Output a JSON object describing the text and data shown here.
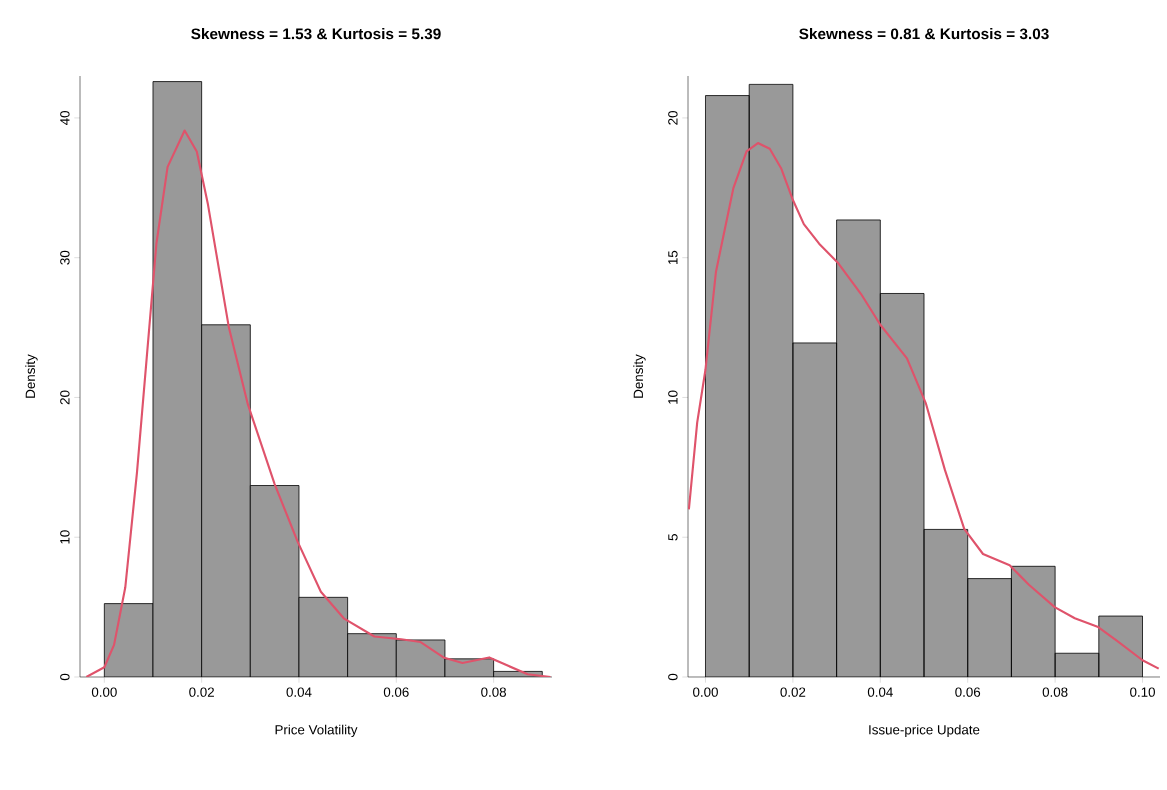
{
  "chart_data": [
    {
      "type": "histogram",
      "title": "Skewness = 1.53 & Kurtosis = 5.39",
      "xlabel": "Price Volatility",
      "ylabel": "Density",
      "bins": [
        0,
        0.01,
        0.02,
        0.03,
        0.04,
        0.05,
        0.06,
        0.07,
        0.08,
        0.09
      ],
      "values": [
        5.25,
        42.6,
        25.2,
        13.7,
        5.7,
        3.1,
        2.65,
        1.3,
        0.4
      ],
      "color": "#999999",
      "series": [
        {
          "type": "line",
          "color": "#df536b",
          "x": [
            -0.0037,
            0.0,
            0.002,
            0.0043,
            0.0067,
            0.0087,
            0.0107,
            0.013,
            0.0165,
            0.019,
            0.0213,
            0.0256,
            0.0295,
            0.035,
            0.0397,
            0.0445,
            0.0492,
            0.0555,
            0.061,
            0.065,
            0.0697,
            0.0736,
            0.0791,
            0.083,
            0.087,
            0.0917
          ],
          "values": [
            0,
            0.7,
            2.3,
            6.4,
            14.6,
            22.8,
            31,
            36.5,
            39.1,
            37.6,
            33.8,
            25,
            19.5,
            13.8,
            9.7,
            6.1,
            4.2,
            2.9,
            2.7,
            2.5,
            1.4,
            1.0,
            1.4,
            0.8,
            0.2,
            0
          ]
        }
      ],
      "xlim": [
        -0.005,
        0.092
      ],
      "ylim": [
        0,
        43
      ],
      "xticks": [
        {
          "value": 0,
          "label": "0.00"
        },
        {
          "value": 0.02,
          "label": "0.02"
        },
        {
          "value": 0.04,
          "label": "0.04"
        },
        {
          "value": 0.06,
          "label": "0.06"
        },
        {
          "value": 0.08,
          "label": "0.08"
        }
      ],
      "yticks": [
        0,
        10,
        20,
        30,
        40
      ]
    },
    {
      "type": "histogram",
      "title": "Skewness = 0.81 & Kurtosis = 3.03",
      "xlabel": "Issue-price Update",
      "ylabel": "Density",
      "bins": [
        0,
        0.01,
        0.02,
        0.03,
        0.04,
        0.05,
        0.06,
        0.07,
        0.08,
        0.09,
        0.1
      ],
      "values": [
        20.8,
        21.2,
        11.95,
        16.35,
        13.72,
        5.28,
        3.52,
        3.96,
        0.85,
        2.18
      ],
      "color": "#999999",
      "series": [
        {
          "type": "line",
          "color": "#df536b",
          "x": [
            -0.0038,
            -0.0019,
            0,
            0.0024,
            0.0064,
            0.0094,
            0.012,
            0.0147,
            0.0173,
            0.0199,
            0.0225,
            0.026,
            0.0304,
            0.0356,
            0.04,
            0.0461,
            0.0504,
            0.0548,
            0.0592,
            0.0635,
            0.0696,
            0.074,
            0.0799,
            0.0845,
            0.0897,
            0.0941,
            0.1,
            0.1037
          ],
          "values": [
            6.0,
            9.1,
            11,
            14.5,
            17.5,
            18.8,
            19.1,
            18.9,
            18.2,
            17.1,
            16.2,
            15.5,
            14.8,
            13.7,
            12.6,
            11.4,
            9.8,
            7.4,
            5.3,
            4.4,
            4.0,
            3.3,
            2.5,
            2.1,
            1.8,
            1.3,
            0.6,
            0.3
          ]
        }
      ],
      "xlim": [
        -0.004,
        0.104
      ],
      "ylim": [
        0,
        21.5
      ],
      "xticks": [
        {
          "value": 0,
          "label": "0.00"
        },
        {
          "value": 0.02,
          "label": "0.02"
        },
        {
          "value": 0.04,
          "label": "0.04"
        },
        {
          "value": 0.06,
          "label": "0.06"
        },
        {
          "value": 0.08,
          "label": "0.08"
        },
        {
          "value": 0.1,
          "label": "0.10"
        }
      ],
      "yticks": [
        0,
        5,
        10,
        15,
        20
      ]
    }
  ]
}
